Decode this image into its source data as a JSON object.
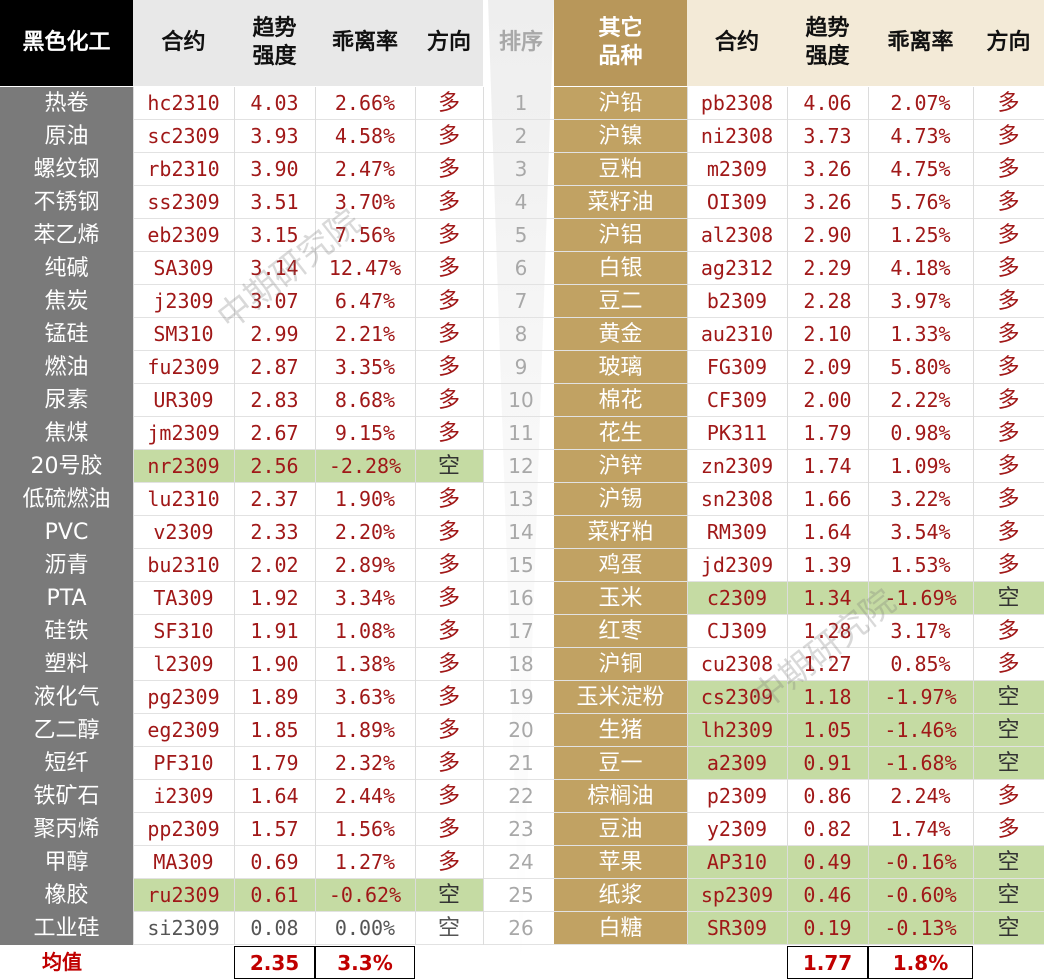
{
  "header": {
    "left_category": "黑色化工",
    "contract": "合约",
    "trend_strength": "趋势\n强度",
    "deviation": "乖离率",
    "direction": "方向",
    "rank": "排序",
    "right_category": "其它\n品种"
  },
  "left_rows": [
    {
      "name": "热卷",
      "code": "hc2310",
      "strength": "4.03",
      "deviation": "2.66%",
      "direction": "多"
    },
    {
      "name": "原油",
      "code": "sc2309",
      "strength": "3.93",
      "deviation": "4.58%",
      "direction": "多"
    },
    {
      "name": "螺纹钢",
      "code": "rb2310",
      "strength": "3.90",
      "deviation": "2.47%",
      "direction": "多"
    },
    {
      "name": "不锈钢",
      "code": "ss2309",
      "strength": "3.51",
      "deviation": "3.70%",
      "direction": "多"
    },
    {
      "name": "苯乙烯",
      "code": "eb2309",
      "strength": "3.15",
      "deviation": "7.56%",
      "direction": "多"
    },
    {
      "name": "纯碱",
      "code": "SA309",
      "strength": "3.14",
      "deviation": "12.47%",
      "direction": "多"
    },
    {
      "name": "焦炭",
      "code": "j2309",
      "strength": "3.07",
      "deviation": "6.47%",
      "direction": "多"
    },
    {
      "name": "锰硅",
      "code": "SM310",
      "strength": "2.99",
      "deviation": "2.21%",
      "direction": "多"
    },
    {
      "name": "燃油",
      "code": "fu2309",
      "strength": "2.87",
      "deviation": "3.35%",
      "direction": "多"
    },
    {
      "name": "尿素",
      "code": "UR309",
      "strength": "2.83",
      "deviation": "8.68%",
      "direction": "多"
    },
    {
      "name": "焦煤",
      "code": "jm2309",
      "strength": "2.67",
      "deviation": "9.15%",
      "direction": "多"
    },
    {
      "name": "20号胶",
      "code": "nr2309",
      "strength": "2.56",
      "deviation": "-2.28%",
      "direction": "空"
    },
    {
      "name": "低硫燃油",
      "code": "lu2310",
      "strength": "2.37",
      "deviation": "1.90%",
      "direction": "多"
    },
    {
      "name": "PVC",
      "code": "v2309",
      "strength": "2.33",
      "deviation": "2.20%",
      "direction": "多"
    },
    {
      "name": "沥青",
      "code": "bu2310",
      "strength": "2.02",
      "deviation": "2.89%",
      "direction": "多"
    },
    {
      "name": "PTA",
      "code": "TA309",
      "strength": "1.92",
      "deviation": "3.34%",
      "direction": "多"
    },
    {
      "name": "硅铁",
      "code": "SF310",
      "strength": "1.91",
      "deviation": "1.08%",
      "direction": "多"
    },
    {
      "name": "塑料",
      "code": "l2309",
      "strength": "1.90",
      "deviation": "1.38%",
      "direction": "多"
    },
    {
      "name": "液化气",
      "code": "pg2309",
      "strength": "1.89",
      "deviation": "3.63%",
      "direction": "多"
    },
    {
      "name": "乙二醇",
      "code": "eg2309",
      "strength": "1.85",
      "deviation": "1.89%",
      "direction": "多"
    },
    {
      "name": "短纤",
      "code": "PF310",
      "strength": "1.79",
      "deviation": "2.32%",
      "direction": "多"
    },
    {
      "name": "铁矿石",
      "code": "i2309",
      "strength": "1.64",
      "deviation": "2.44%",
      "direction": "多"
    },
    {
      "name": "聚丙烯",
      "code": "pp2309",
      "strength": "1.57",
      "deviation": "1.56%",
      "direction": "多"
    },
    {
      "name": "甲醇",
      "code": "MA309",
      "strength": "0.69",
      "deviation": "1.27%",
      "direction": "多"
    },
    {
      "name": "橡胶",
      "code": "ru2309",
      "strength": "0.61",
      "deviation": "-0.62%",
      "direction": "空"
    },
    {
      "name": "工业硅",
      "code": "si2309",
      "strength": "0.08",
      "deviation": "0.00%",
      "direction": "空"
    }
  ],
  "ranks": [
    "1",
    "2",
    "3",
    "4",
    "5",
    "6",
    "7",
    "8",
    "9",
    "10",
    "11",
    "12",
    "13",
    "14",
    "15",
    "16",
    "17",
    "18",
    "19",
    "20",
    "21",
    "22",
    "23",
    "24",
    "25",
    "26"
  ],
  "right_rows": [
    {
      "name": "沪铅",
      "code": "pb2308",
      "strength": "4.06",
      "deviation": "2.07%",
      "direction": "多"
    },
    {
      "name": "沪镍",
      "code": "ni2308",
      "strength": "3.73",
      "deviation": "4.73%",
      "direction": "多"
    },
    {
      "name": "豆粕",
      "code": "m2309",
      "strength": "3.26",
      "deviation": "4.75%",
      "direction": "多"
    },
    {
      "name": "菜籽油",
      "code": "OI309",
      "strength": "3.26",
      "deviation": "5.76%",
      "direction": "多"
    },
    {
      "name": "沪铝",
      "code": "al2308",
      "strength": "2.90",
      "deviation": "1.25%",
      "direction": "多"
    },
    {
      "name": "白银",
      "code": "ag2312",
      "strength": "2.29",
      "deviation": "4.18%",
      "direction": "多"
    },
    {
      "name": "豆二",
      "code": "b2309",
      "strength": "2.28",
      "deviation": "3.97%",
      "direction": "多"
    },
    {
      "name": "黄金",
      "code": "au2310",
      "strength": "2.10",
      "deviation": "1.33%",
      "direction": "多"
    },
    {
      "name": "玻璃",
      "code": "FG309",
      "strength": "2.09",
      "deviation": "5.80%",
      "direction": "多"
    },
    {
      "name": "棉花",
      "code": "CF309",
      "strength": "2.00",
      "deviation": "2.22%",
      "direction": "多"
    },
    {
      "name": "花生",
      "code": "PK311",
      "strength": "1.79",
      "deviation": "0.98%",
      "direction": "多"
    },
    {
      "name": "沪锌",
      "code": "zn2309",
      "strength": "1.74",
      "deviation": "1.09%",
      "direction": "多"
    },
    {
      "name": "沪锡",
      "code": "sn2308",
      "strength": "1.66",
      "deviation": "3.22%",
      "direction": "多"
    },
    {
      "name": "菜籽粕",
      "code": "RM309",
      "strength": "1.64",
      "deviation": "3.54%",
      "direction": "多"
    },
    {
      "name": "鸡蛋",
      "code": "jd2309",
      "strength": "1.39",
      "deviation": "1.53%",
      "direction": "多"
    },
    {
      "name": "玉米",
      "code": "c2309",
      "strength": "1.34",
      "deviation": "-1.69%",
      "direction": "空"
    },
    {
      "name": "红枣",
      "code": "CJ309",
      "strength": "1.28",
      "deviation": "3.17%",
      "direction": "多"
    },
    {
      "name": "沪铜",
      "code": "cu2308",
      "strength": "1.27",
      "deviation": "0.85%",
      "direction": "多"
    },
    {
      "name": "玉米淀粉",
      "code": "cs2309",
      "strength": "1.18",
      "deviation": "-1.97%",
      "direction": "空"
    },
    {
      "name": "生猪",
      "code": "lh2309",
      "strength": "1.05",
      "deviation": "-1.46%",
      "direction": "空"
    },
    {
      "name": "豆一",
      "code": "a2309",
      "strength": "0.91",
      "deviation": "-1.68%",
      "direction": "空"
    },
    {
      "name": "棕榈油",
      "code": "p2309",
      "strength": "0.86",
      "deviation": "2.24%",
      "direction": "多"
    },
    {
      "name": "豆油",
      "code": "y2309",
      "strength": "0.82",
      "deviation": "1.74%",
      "direction": "多"
    },
    {
      "name": "苹果",
      "code": "AP310",
      "strength": "0.49",
      "deviation": "-0.16%",
      "direction": "空"
    },
    {
      "name": "纸浆",
      "code": "sp2309",
      "strength": "0.46",
      "deviation": "-0.60%",
      "direction": "空"
    },
    {
      "name": "白糖",
      "code": "SR309",
      "strength": "0.19",
      "deviation": "-0.13%",
      "direction": "空"
    }
  ],
  "footer": {
    "label": "均值",
    "left_avg_strength": "2.35",
    "left_avg_deviation": "3.3%",
    "right_avg_strength": "1.77",
    "right_avg_deviation": "1.8%"
  },
  "watermarks": [
    "中期研究院",
    "中期研究院"
  ],
  "colors": {
    "left_category_bg": "#000000",
    "left_name_bg": "#7a7a7a",
    "right_category_bg": "#b8975a",
    "right_name_bg": "#c1a263",
    "value_red": "#a01818",
    "short_highlight": "#c5dba3",
    "average_red": "#c00000"
  }
}
